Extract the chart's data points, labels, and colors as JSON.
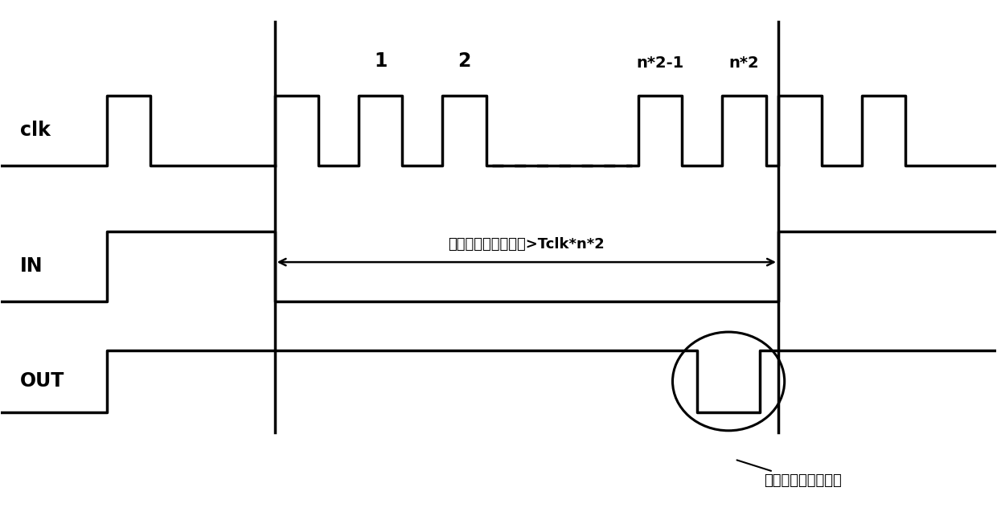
{
  "bg_color": "#ffffff",
  "line_color": "#000000",
  "line_width": 2.5,
  "fig_width": 12.4,
  "fig_height": 6.42,
  "dpi": 100,
  "arrow_text": "干扰信号低脉冲时间>Tclk*n*2",
  "annotation_text": "输出低电平复低脉冲",
  "clk_label": "clk",
  "in_label": "IN",
  "out_label": "OUT",
  "clk_label_1": "1",
  "clk_label_2": "2",
  "clk_label_n1": "n*2-1",
  "clk_label_n2": "n*2"
}
